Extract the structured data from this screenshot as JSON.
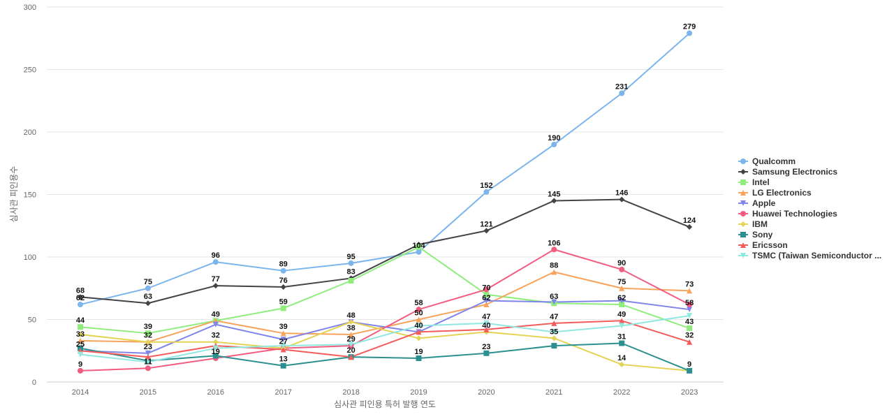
{
  "chart_data": {
    "type": "line",
    "title": "",
    "xlabel": "심사관 피인용 특허 발행 연도",
    "ylabel": "심사관 피인용수",
    "x": [
      2014,
      2015,
      2016,
      2017,
      2018,
      2019,
      2020,
      2021,
      2022,
      2023
    ],
    "ylim": [
      0,
      300
    ],
    "yticks": [
      0,
      50,
      100,
      150,
      200,
      250,
      300
    ],
    "grid": true,
    "legend_position": "right",
    "series": [
      {
        "name": "Qualcomm",
        "color": "#7cb5ec",
        "marker": "circle",
        "values": [
          62,
          75,
          96,
          89,
          95,
          104,
          152,
          190,
          231,
          279
        ]
      },
      {
        "name": "Samsung Electronics",
        "color": "#434348",
        "marker": "diamond",
        "values": [
          68,
          63,
          77,
          76,
          83,
          110,
          121,
          145,
          146,
          124
        ]
      },
      {
        "name": "Intel",
        "color": "#90ed7d",
        "marker": "square",
        "values": [
          44,
          39,
          49,
          59,
          81,
          108,
          70,
          63,
          62,
          43
        ]
      },
      {
        "name": "LG Electronics",
        "color": "#f7a35c",
        "marker": "triangle",
        "values": [
          33,
          32,
          49,
          39,
          38,
          50,
          62,
          88,
          75,
          73
        ]
      },
      {
        "name": "Apple",
        "color": "#8085e9",
        "marker": "triangle-down",
        "values": [
          25,
          23,
          46,
          34,
          48,
          40,
          65,
          64,
          65,
          58
        ]
      },
      {
        "name": "Huawei Technologies",
        "color": "#f15c80",
        "marker": "circle",
        "values": [
          9,
          11,
          19,
          27,
          29,
          58,
          74,
          106,
          90,
          62
        ]
      },
      {
        "name": "IBM",
        "color": "#e4d354",
        "marker": "diamond",
        "values": [
          38,
          32,
          32,
          27,
          48,
          35,
          40,
          35,
          14,
          9
        ]
      },
      {
        "name": "Sony",
        "color": "#2b908f",
        "marker": "square",
        "values": [
          27,
          17,
          21,
          13,
          20,
          19,
          23,
          29,
          31,
          9
        ]
      },
      {
        "name": "Ericsson",
        "color": "#f45b5b",
        "marker": "triangle",
        "values": [
          25,
          20,
          29,
          26,
          20,
          40,
          42,
          47,
          49,
          32
        ]
      },
      {
        "name": "TSMC (Taiwan Semiconductor ...",
        "color": "#91e8e1",
        "marker": "triangle-down",
        "values": [
          22,
          16,
          27,
          29,
          30,
          45,
          47,
          40,
          45,
          53
        ]
      }
    ],
    "data_labels": [
      {
        "x": 2014,
        "y": 62,
        "text": "62"
      },
      {
        "x": 2014,
        "y": 68,
        "text": "68"
      },
      {
        "x": 2014,
        "y": 44,
        "text": "44"
      },
      {
        "x": 2014,
        "y": 33,
        "text": "33"
      },
      {
        "x": 2014,
        "y": 25,
        "text": "25"
      },
      {
        "x": 2014,
        "y": 9,
        "text": "9"
      },
      {
        "x": 2015,
        "y": 75,
        "text": "75"
      },
      {
        "x": 2015,
        "y": 63,
        "text": "63"
      },
      {
        "x": 2015,
        "y": 39,
        "text": "39"
      },
      {
        "x": 2015,
        "y": 32,
        "text": "32"
      },
      {
        "x": 2015,
        "y": 23,
        "text": "23"
      },
      {
        "x": 2015,
        "y": 11,
        "text": "11"
      },
      {
        "x": 2016,
        "y": 96,
        "text": "96"
      },
      {
        "x": 2016,
        "y": 77,
        "text": "77"
      },
      {
        "x": 2016,
        "y": 49,
        "text": "49"
      },
      {
        "x": 2016,
        "y": 32,
        "text": "32"
      },
      {
        "x": 2016,
        "y": 19,
        "text": "19"
      },
      {
        "x": 2017,
        "y": 89,
        "text": "89"
      },
      {
        "x": 2017,
        "y": 76,
        "text": "76"
      },
      {
        "x": 2017,
        "y": 59,
        "text": "59"
      },
      {
        "x": 2017,
        "y": 39,
        "text": "39"
      },
      {
        "x": 2017,
        "y": 27,
        "text": "27"
      },
      {
        "x": 2017,
        "y": 13,
        "text": "13"
      },
      {
        "x": 2018,
        "y": 95,
        "text": "95"
      },
      {
        "x": 2018,
        "y": 83,
        "text": "83"
      },
      {
        "x": 2018,
        "y": 48,
        "text": "48"
      },
      {
        "x": 2018,
        "y": 38,
        "text": "38"
      },
      {
        "x": 2018,
        "y": 29,
        "text": "29"
      },
      {
        "x": 2018,
        "y": 20,
        "text": "20"
      },
      {
        "x": 2019,
        "y": 104,
        "text": "104"
      },
      {
        "x": 2019,
        "y": 58,
        "text": "58"
      },
      {
        "x": 2019,
        "y": 50,
        "text": "50"
      },
      {
        "x": 2019,
        "y": 40,
        "text": "40"
      },
      {
        "x": 2019,
        "y": 19,
        "text": "19"
      },
      {
        "x": 2020,
        "y": 152,
        "text": "152"
      },
      {
        "x": 2020,
        "y": 121,
        "text": "121"
      },
      {
        "x": 2020,
        "y": 70,
        "text": "70"
      },
      {
        "x": 2020,
        "y": 62,
        "text": "62"
      },
      {
        "x": 2020,
        "y": 47,
        "text": "47"
      },
      {
        "x": 2020,
        "y": 40,
        "text": "40"
      },
      {
        "x": 2020,
        "y": 23,
        "text": "23"
      },
      {
        "x": 2021,
        "y": 190,
        "text": "190"
      },
      {
        "x": 2021,
        "y": 145,
        "text": "145"
      },
      {
        "x": 2021,
        "y": 106,
        "text": "106"
      },
      {
        "x": 2021,
        "y": 88,
        "text": "88"
      },
      {
        "x": 2021,
        "y": 63,
        "text": "63"
      },
      {
        "x": 2021,
        "y": 47,
        "text": "47"
      },
      {
        "x": 2021,
        "y": 35,
        "text": "35"
      },
      {
        "x": 2022,
        "y": 231,
        "text": "231"
      },
      {
        "x": 2022,
        "y": 146,
        "text": "146"
      },
      {
        "x": 2022,
        "y": 90,
        "text": "90"
      },
      {
        "x": 2022,
        "y": 75,
        "text": "75"
      },
      {
        "x": 2022,
        "y": 62,
        "text": "62"
      },
      {
        "x": 2022,
        "y": 49,
        "text": "49"
      },
      {
        "x": 2022,
        "y": 31,
        "text": "31"
      },
      {
        "x": 2022,
        "y": 14,
        "text": "14"
      },
      {
        "x": 2023,
        "y": 279,
        "text": "279"
      },
      {
        "x": 2023,
        "y": 124,
        "text": "124"
      },
      {
        "x": 2023,
        "y": 73,
        "text": "73"
      },
      {
        "x": 2023,
        "y": 58,
        "text": "58"
      },
      {
        "x": 2023,
        "y": 43,
        "text": "43"
      },
      {
        "x": 2023,
        "y": 32,
        "text": "32"
      },
      {
        "x": 2023,
        "y": 9,
        "text": "9"
      }
    ]
  }
}
